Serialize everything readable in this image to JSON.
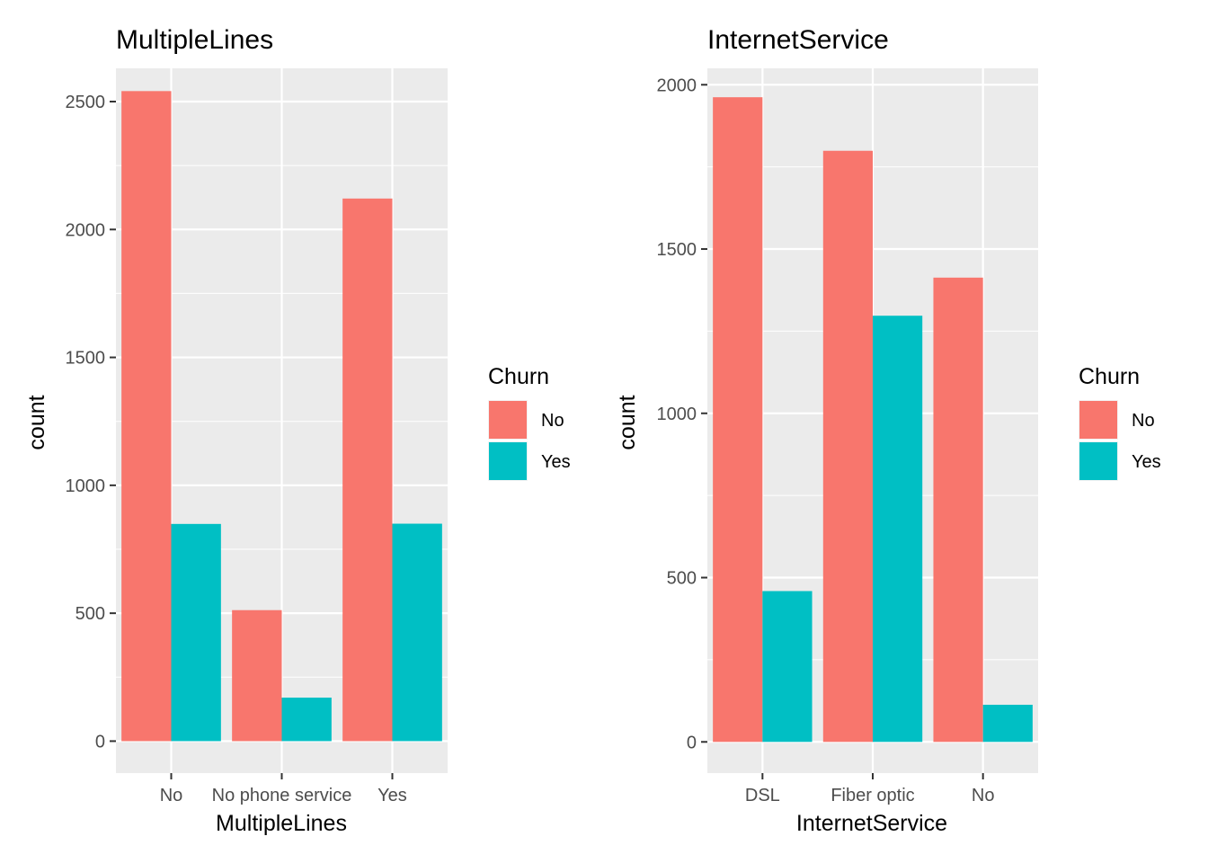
{
  "chart_data": [
    {
      "type": "bar",
      "title": "MultipleLines",
      "xlabel": "MultipleLines",
      "ylabel": "count",
      "categories": [
        "No",
        "No phone service",
        "Yes"
      ],
      "series": [
        {
          "name": "No",
          "values": [
            2541,
            512,
            2121
          ]
        },
        {
          "name": "Yes",
          "values": [
            849,
            170,
            850
          ]
        }
      ],
      "ylim": [
        -125,
        2630
      ],
      "yticks": [
        0,
        500,
        1000,
        1500,
        2000,
        2500
      ],
      "ytick_labels": [
        "0",
        "500",
        "1000",
        "1500",
        "2000",
        "2500"
      ],
      "grid": true,
      "legend": {
        "title": "Churn",
        "entries": [
          "No",
          "Yes"
        ],
        "placement": "right"
      }
    },
    {
      "type": "bar",
      "title": "InternetService",
      "xlabel": "InternetService",
      "ylabel": "count",
      "categories": [
        "DSL",
        "Fiber optic",
        "No"
      ],
      "series": [
        {
          "name": "No",
          "values": [
            1962,
            1799,
            1413
          ]
        },
        {
          "name": "Yes",
          "values": [
            459,
            1297,
            113
          ]
        }
      ],
      "ylim": [
        -95,
        2050
      ],
      "yticks": [
        0,
        500,
        1000,
        1500,
        2000
      ],
      "ytick_labels": [
        "0",
        "500",
        "1000",
        "1500",
        "2000"
      ],
      "grid": true,
      "legend": {
        "title": "Churn",
        "entries": [
          "No",
          "Yes"
        ],
        "placement": "right"
      }
    }
  ],
  "colors": {
    "No": "#F8766D",
    "Yes": "#00BFC4",
    "panel": "#EBEBEB",
    "grid": "#FFFFFF"
  }
}
